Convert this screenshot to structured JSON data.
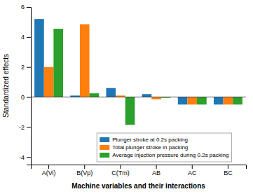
{
  "chart_data": {
    "type": "bar",
    "categories": [
      "A(Vi)",
      "B(Vp)",
      "C(Tm)",
      "AB",
      "AC",
      "BC"
    ],
    "series": [
      {
        "name": "Plunger stroke at 0.2s packing",
        "values": [
          5.2,
          0.1,
          0.6,
          0.2,
          -0.5,
          -0.5
        ]
      },
      {
        "name": "Total plunger stroke in packing",
        "values": [
          2.0,
          4.85,
          0.1,
          -0.15,
          -0.5,
          -0.5
        ]
      },
      {
        "name": "Average injection pressure during 0.2s packing",
        "values": [
          4.55,
          0.25,
          -1.85,
          -0.05,
          -0.5,
          -0.5
        ]
      }
    ],
    "ylim": [
      -4.5,
      6
    ],
    "yticks": [
      -4,
      -2,
      0,
      2,
      4,
      6
    ],
    "ylabel": "Standardized effects",
    "xlabel": "Machine variables and their interactions",
    "grid": false,
    "legend": "bottom"
  }
}
